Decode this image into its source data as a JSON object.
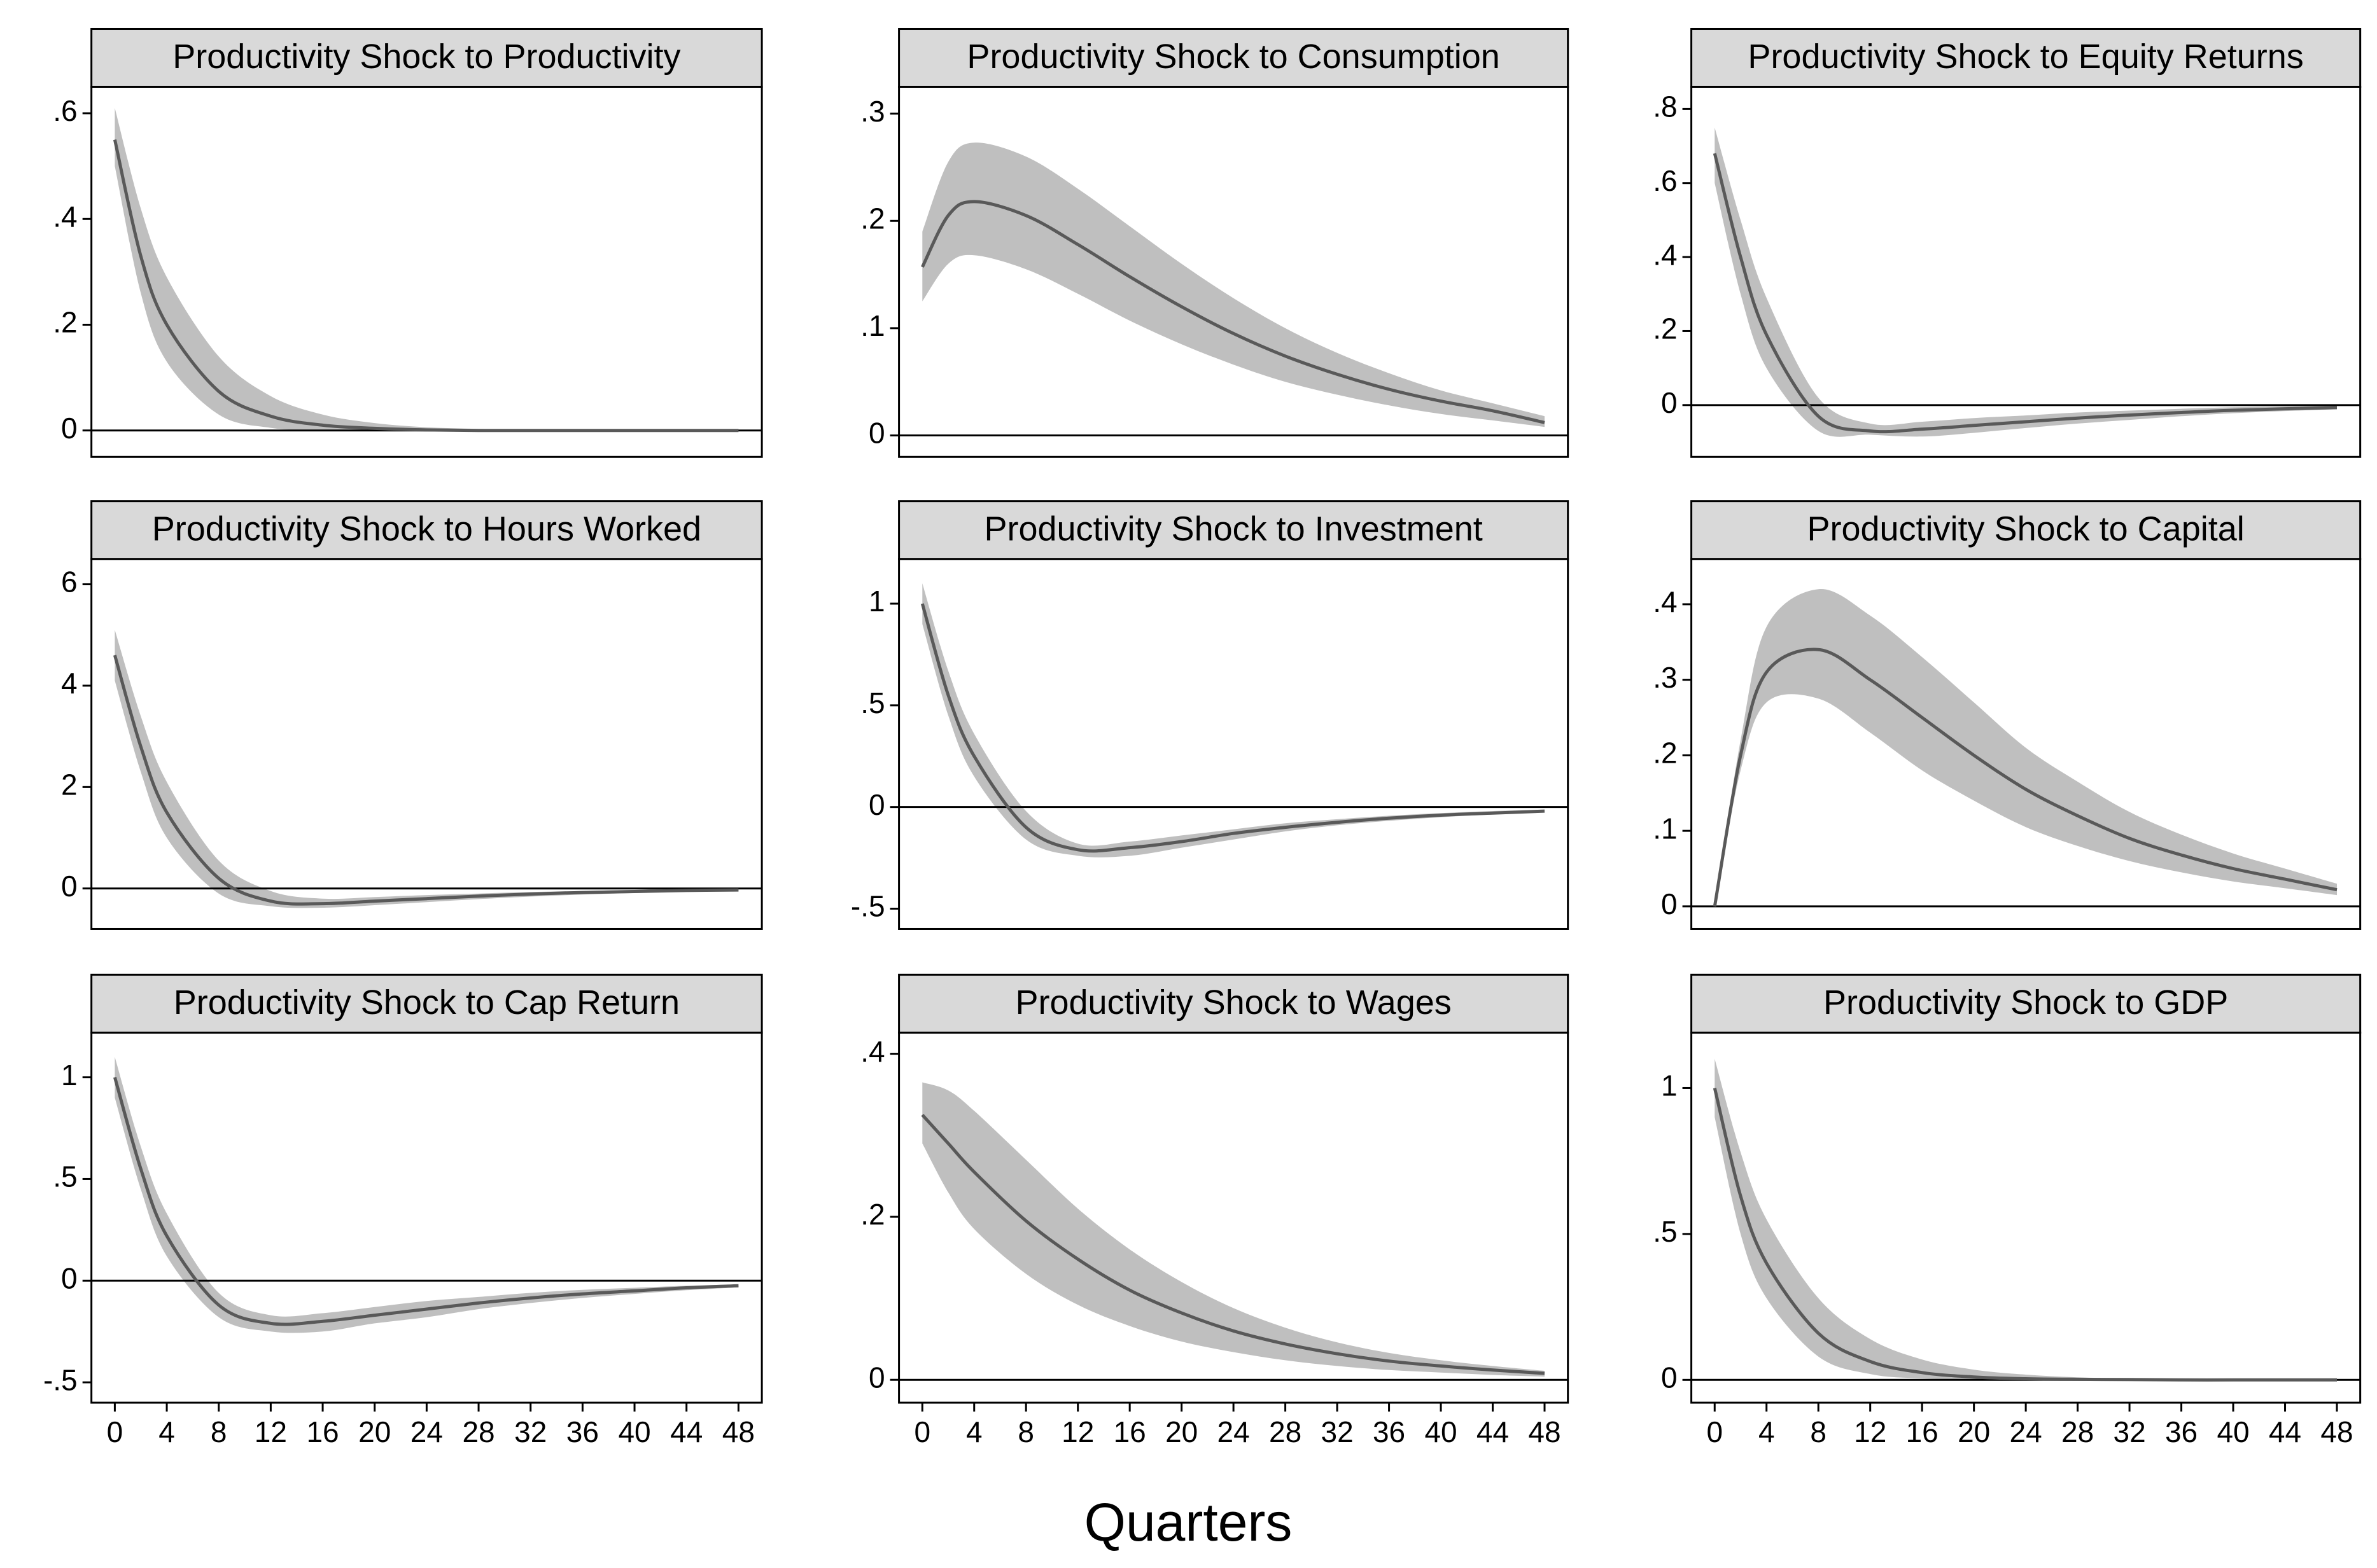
{
  "chart_data": [
    {
      "type": "line",
      "title": "Productivity Shock to Productivity",
      "x": [
        0,
        2,
        4,
        8,
        12,
        16,
        20,
        24,
        28,
        32,
        36,
        40,
        44,
        48
      ],
      "values": [
        0.55,
        0.33,
        0.2,
        0.074,
        0.027,
        0.01,
        0.004,
        0.001,
        0,
        0,
        0,
        0,
        0,
        0
      ],
      "upper": [
        0.61,
        0.42,
        0.29,
        0.14,
        0.065,
        0.03,
        0.014,
        0.006,
        0.003,
        0.001,
        0,
        0,
        0,
        0
      ],
      "lower": [
        0.5,
        0.26,
        0.13,
        0.03,
        0.005,
        0,
        0,
        0,
        0,
        0,
        0,
        0,
        0,
        0
      ],
      "color": "#595959",
      "band_color": "#bfbfbf",
      "hline": 0,
      "xlim": [
        -1.8,
        49.8
      ],
      "ylim": [
        -0.05,
        0.65
      ],
      "yticks": [
        0,
        {
          "value": 0.2,
          "label": ".2"
        },
        {
          "value": 0.4,
          "label": ".4"
        },
        {
          "value": 0.6,
          "label": ".6"
        }
      ]
    },
    {
      "type": "line",
      "title": "Productivity Shock to Consumption",
      "x": [
        0,
        2,
        4,
        8,
        12,
        16,
        20,
        24,
        28,
        32,
        36,
        40,
        44,
        48
      ],
      "values": [
        0.157,
        0.205,
        0.218,
        0.205,
        0.178,
        0.148,
        0.12,
        0.095,
        0.074,
        0.057,
        0.043,
        0.032,
        0.023,
        0.012
      ],
      "upper": [
        0.19,
        0.255,
        0.273,
        0.26,
        0.23,
        0.195,
        0.16,
        0.128,
        0.1,
        0.077,
        0.058,
        0.042,
        0.03,
        0.018
      ],
      "lower": [
        0.125,
        0.16,
        0.168,
        0.155,
        0.132,
        0.107,
        0.085,
        0.066,
        0.05,
        0.038,
        0.028,
        0.02,
        0.014,
        0.008
      ],
      "color": "#595959",
      "band_color": "#bfbfbf",
      "hline": 0,
      "xlim": [
        -1.8,
        49.8
      ],
      "ylim": [
        -0.02,
        0.325
      ],
      "yticks": [
        0,
        {
          "value": 0.1,
          "label": ".1"
        },
        {
          "value": 0.2,
          "label": ".2"
        },
        {
          "value": 0.3,
          "label": ".3"
        }
      ]
    },
    {
      "type": "line",
      "title": "Productivity Shock to Equity Returns",
      "x": [
        0,
        2,
        4,
        8,
        12,
        16,
        20,
        24,
        28,
        32,
        36,
        40,
        44,
        48
      ],
      "values": [
        0.68,
        0.4,
        0.19,
        -0.03,
        -0.07,
        -0.065,
        -0.055,
        -0.045,
        -0.035,
        -0.027,
        -0.02,
        -0.014,
        -0.01,
        -0.007
      ],
      "upper": [
        0.75,
        0.5,
        0.29,
        0.02,
        -0.05,
        -0.045,
        -0.035,
        -0.028,
        -0.02,
        -0.015,
        -0.01,
        -0.006,
        -0.004,
        -0.002
      ],
      "lower": [
        0.6,
        0.3,
        0.1,
        -0.07,
        -0.08,
        -0.085,
        -0.075,
        -0.062,
        -0.05,
        -0.04,
        -0.03,
        -0.022,
        -0.016,
        -0.011
      ],
      "color": "#595959",
      "band_color": "#bfbfbf",
      "hline": 0,
      "xlim": [
        -1.8,
        49.8
      ],
      "ylim": [
        -0.14,
        0.86
      ],
      "yticks": [
        0,
        {
          "value": 0.2,
          "label": ".2"
        },
        {
          "value": 0.4,
          "label": ".4"
        },
        {
          "value": 0.6,
          "label": ".6"
        },
        {
          "value": 0.8,
          "label": ".8"
        }
      ]
    },
    {
      "type": "line",
      "title": "Productivity Shock to Hours Worked",
      "x": [
        0,
        2,
        4,
        8,
        12,
        16,
        20,
        24,
        28,
        32,
        36,
        40,
        44,
        48
      ],
      "values": [
        4.6,
        2.8,
        1.5,
        0.2,
        -0.25,
        -0.3,
        -0.25,
        -0.2,
        -0.15,
        -0.11,
        -0.08,
        -0.06,
        -0.04,
        -0.03
      ],
      "upper": [
        5.1,
        3.4,
        2.1,
        0.55,
        -0.05,
        -0.2,
        -0.17,
        -0.13,
        -0.1,
        -0.07,
        -0.05,
        -0.03,
        -0.02,
        -0.01
      ],
      "lower": [
        4.1,
        2.3,
        1.0,
        -0.1,
        -0.35,
        -0.38,
        -0.33,
        -0.27,
        -0.21,
        -0.16,
        -0.12,
        -0.09,
        -0.06,
        -0.05
      ],
      "color": "#595959",
      "band_color": "#bfbfbf",
      "hline": 0,
      "xlim": [
        -1.8,
        49.8
      ],
      "ylim": [
        -0.8,
        6.5
      ],
      "yticks": [
        0,
        2,
        4,
        6
      ]
    },
    {
      "type": "line",
      "title": "Productivity Shock to Investment",
      "x": [
        0,
        2,
        4,
        8,
        12,
        16,
        20,
        24,
        28,
        32,
        36,
        40,
        44,
        48
      ],
      "values": [
        1.0,
        0.55,
        0.25,
        -0.1,
        -0.21,
        -0.2,
        -0.17,
        -0.13,
        -0.1,
        -0.075,
        -0.055,
        -0.04,
        -0.03,
        -0.02
      ],
      "upper": [
        1.1,
        0.67,
        0.36,
        -0.02,
        -0.18,
        -0.17,
        -0.14,
        -0.11,
        -0.08,
        -0.06,
        -0.043,
        -0.03,
        -0.02,
        -0.013
      ],
      "lower": [
        0.9,
        0.45,
        0.15,
        -0.16,
        -0.24,
        -0.24,
        -0.2,
        -0.16,
        -0.12,
        -0.09,
        -0.068,
        -0.05,
        -0.037,
        -0.027
      ],
      "color": "#595959",
      "band_color": "#bfbfbf",
      "hline": 0,
      "xlim": [
        -1.8,
        49.8
      ],
      "ylim": [
        -0.6,
        1.22
      ],
      "yticks": [
        {
          "value": -0.5,
          "label": "-.5"
        },
        0,
        {
          "value": 0.5,
          "label": ".5"
        },
        1
      ]
    },
    {
      "type": "line",
      "title": "Productivity Shock to Capital",
      "x": [
        0,
        2,
        4,
        8,
        12,
        16,
        20,
        24,
        28,
        32,
        36,
        40,
        44,
        48
      ],
      "values": [
        0,
        0.2,
        0.31,
        0.34,
        0.3,
        0.25,
        0.2,
        0.155,
        0.12,
        0.09,
        0.068,
        0.05,
        0.036,
        0.022
      ],
      "upper": [
        0,
        0.22,
        0.37,
        0.42,
        0.385,
        0.33,
        0.27,
        0.21,
        0.165,
        0.125,
        0.095,
        0.07,
        0.05,
        0.03
      ],
      "lower": [
        0,
        0.18,
        0.27,
        0.275,
        0.23,
        0.18,
        0.14,
        0.105,
        0.08,
        0.06,
        0.045,
        0.033,
        0.024,
        0.015
      ],
      "color": "#595959",
      "band_color": "#bfbfbf",
      "hline": 0,
      "xlim": [
        -1.8,
        49.8
      ],
      "ylim": [
        -0.03,
        0.46
      ],
      "yticks": [
        0,
        {
          "value": 0.1,
          "label": ".1"
        },
        {
          "value": 0.2,
          "label": ".2"
        },
        {
          "value": 0.3,
          "label": ".3"
        },
        {
          "value": 0.4,
          "label": ".4"
        }
      ]
    },
    {
      "type": "line",
      "title": "Productivity Shock to Cap Return",
      "x": [
        0,
        2,
        4,
        8,
        12,
        16,
        20,
        24,
        28,
        32,
        36,
        40,
        44,
        48
      ],
      "values": [
        1.0,
        0.55,
        0.22,
        -0.12,
        -0.21,
        -0.2,
        -0.17,
        -0.14,
        -0.11,
        -0.085,
        -0.065,
        -0.05,
        -0.035,
        -0.025
      ],
      "upper": [
        1.1,
        0.66,
        0.33,
        -0.06,
        -0.17,
        -0.16,
        -0.13,
        -0.1,
        -0.08,
        -0.06,
        -0.045,
        -0.035,
        -0.025,
        -0.018
      ],
      "lower": [
        0.9,
        0.45,
        0.12,
        -0.18,
        -0.25,
        -0.25,
        -0.21,
        -0.18,
        -0.14,
        -0.11,
        -0.085,
        -0.065,
        -0.047,
        -0.033
      ],
      "color": "#595959",
      "band_color": "#bfbfbf",
      "hline": 0,
      "xlim": [
        -1.8,
        49.8
      ],
      "ylim": [
        -0.6,
        1.22
      ],
      "xticks": [
        0,
        4,
        8,
        12,
        16,
        20,
        24,
        28,
        32,
        36,
        40,
        44,
        48
      ],
      "yticks": [
        {
          "value": -0.5,
          "label": "-.5"
        },
        0,
        {
          "value": 0.5,
          "label": ".5"
        },
        1
      ]
    },
    {
      "type": "line",
      "title": "Productivity Shock to Wages",
      "x": [
        0,
        2,
        4,
        8,
        12,
        16,
        20,
        24,
        28,
        32,
        36,
        40,
        44,
        48
      ],
      "values": [
        0.325,
        0.29,
        0.255,
        0.195,
        0.148,
        0.11,
        0.082,
        0.06,
        0.044,
        0.032,
        0.023,
        0.017,
        0.012,
        0.008
      ],
      "upper": [
        0.365,
        0.355,
        0.33,
        0.27,
        0.21,
        0.16,
        0.12,
        0.088,
        0.064,
        0.046,
        0.033,
        0.024,
        0.017,
        0.011
      ],
      "lower": [
        0.29,
        0.23,
        0.185,
        0.13,
        0.092,
        0.066,
        0.047,
        0.034,
        0.024,
        0.017,
        0.012,
        0.009,
        0.006,
        0.004
      ],
      "color": "#595959",
      "band_color": "#bfbfbf",
      "hline": 0,
      "xlim": [
        -1.8,
        49.8
      ],
      "ylim": [
        -0.028,
        0.426
      ],
      "xticks": [
        0,
        4,
        8,
        12,
        16,
        20,
        24,
        28,
        32,
        36,
        40,
        44,
        48
      ],
      "yticks": [
        0,
        {
          "value": 0.2,
          "label": ".2"
        },
        {
          "value": 0.4,
          "label": ".4"
        }
      ]
    },
    {
      "type": "line",
      "title": "Productivity Shock to GDP",
      "x": [
        0,
        2,
        4,
        8,
        12,
        16,
        20,
        24,
        28,
        32,
        36,
        40,
        44,
        48
      ],
      "values": [
        1.0,
        0.63,
        0.4,
        0.16,
        0.063,
        0.025,
        0.01,
        0.004,
        0.002,
        0.001,
        0,
        0,
        0,
        0
      ],
      "upper": [
        1.1,
        0.78,
        0.55,
        0.28,
        0.14,
        0.07,
        0.035,
        0.018,
        0.009,
        0.005,
        0.002,
        0.001,
        0,
        0
      ],
      "lower": [
        0.9,
        0.5,
        0.28,
        0.08,
        0.02,
        0.005,
        0.001,
        0,
        0,
        0,
        0,
        0,
        0,
        0
      ],
      "color": "#595959",
      "band_color": "#bfbfbf",
      "hline": 0,
      "xlim": [
        -1.8,
        49.8
      ],
      "ylim": [
        -0.078,
        1.19
      ],
      "xticks": [
        0,
        4,
        8,
        12,
        16,
        20,
        24,
        28,
        32,
        36,
        40,
        44,
        48
      ],
      "yticks": [
        0,
        {
          "value": 0.5,
          "label": ".5"
        },
        1
      ]
    }
  ],
  "xlabel": "Quarters"
}
